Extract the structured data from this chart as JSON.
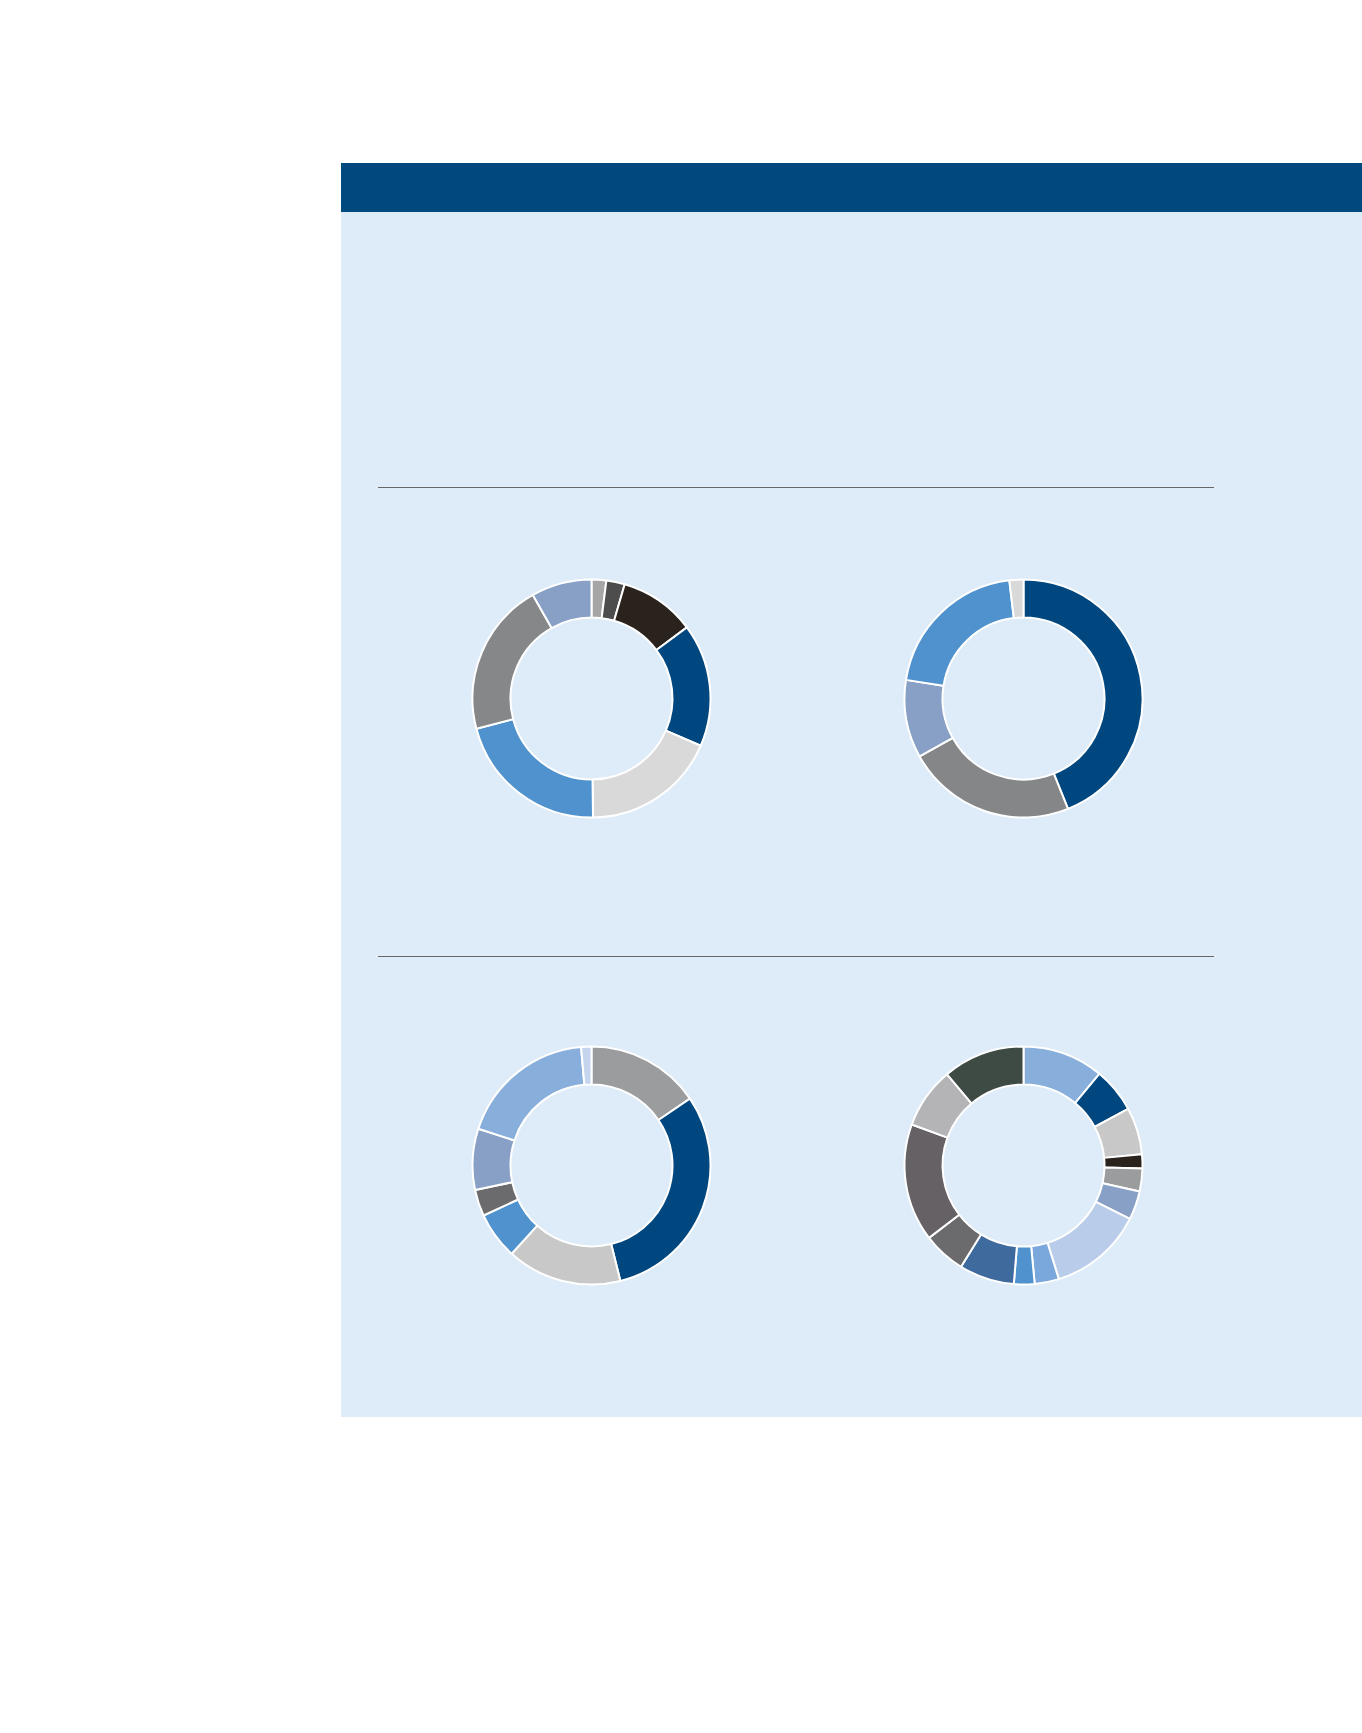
{
  "chart_data": [
    {
      "type": "donut",
      "categories": [
        null,
        null,
        null,
        null,
        null,
        null,
        null,
        null
      ],
      "values": [
        2,
        2.5,
        10.3,
        16.7,
        18.3,
        21.1,
        20.9,
        8.2
      ],
      "colors": [
        "#a6a6a6",
        "#4d4d4d",
        "#2a221c",
        "#00477f",
        "#d9d9d9",
        "#4f92cd",
        "#868788",
        "#88a0c5"
      ]
    },
    {
      "type": "donut",
      "categories": [
        null,
        null,
        null,
        null,
        null
      ],
      "values": [
        43.9,
        23,
        10.6,
        20.6,
        1.9
      ],
      "colors": [
        "#00477f",
        "#858688",
        "#88a0c5",
        "#4f92cd",
        "#d9d9d9"
      ]
    },
    {
      "type": "donut",
      "categories": [
        null,
        null,
        null,
        null,
        null,
        null,
        null,
        null
      ],
      "values": [
        15.5,
        30.6,
        15.6,
        6.4,
        3.6,
        8.3,
        18.6,
        1.4
      ],
      "colors": [
        "#9a9c9d",
        "#00477f",
        "#c8c8c8",
        "#4f92cd",
        "#6b6b6d",
        "#88a0c5",
        "#88afdc",
        "#c5d5ee"
      ]
    },
    {
      "type": "donut",
      "categories": [
        null,
        null,
        null,
        null,
        null,
        null,
        null,
        null,
        null,
        null,
        null,
        null,
        null,
        null
      ],
      "values": [
        11,
        6.1,
        6.4,
        1.9,
        3.1,
        3.9,
        12.8,
        3.3,
        2.8,
        7.5,
        5.8,
        16,
        8.3,
        11.1
      ],
      "colors": [
        "#88afdc",
        "#00477f",
        "#c8c8c8",
        "#2a221c",
        "#9a9c9d",
        "#88a0c5",
        "#b9cdea",
        "#7aa8dc",
        "#4f92cd",
        "#3e6a9e",
        "#6b6b6d",
        "#666165",
        "#b4b4b6",
        "#3e4a44"
      ]
    }
  ]
}
